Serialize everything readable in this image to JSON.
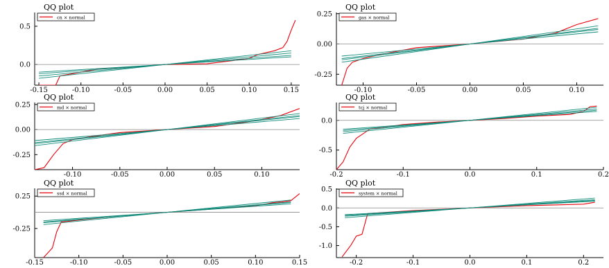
{
  "chart_data": [
    {
      "type": "line",
      "title": "QQ plot",
      "legend": {
        "label": "cn × normal",
        "position": "top-left"
      },
      "x_ticks": [
        -0.15,
        -0.1,
        -0.05,
        0.0,
        0.05,
        0.1,
        0.15
      ],
      "x_tick_labels": [
        "-0.15",
        "-0.10",
        "-0.05",
        "0.00",
        "0.05",
        "0.10",
        "0.15"
      ],
      "y_ticks": [
        0.0,
        0.5
      ],
      "y_tick_labels": [
        "0.0",
        "0.5"
      ],
      "xlim": [
        -0.155,
        0.16
      ],
      "ylim": [
        -0.27,
        0.68
      ],
      "series": [
        {
          "color": "#e8000b",
          "x": [
            -0.15,
            -0.14,
            -0.13,
            -0.125,
            -0.12,
            -0.11,
            -0.1,
            -0.08,
            -0.05,
            0.0,
            0.05,
            0.08,
            0.1,
            0.11,
            0.13,
            0.14,
            0.145,
            0.15,
            0.155
          ],
          "y": [
            -0.27,
            -0.27,
            -0.27,
            -0.15,
            -0.14,
            -0.12,
            -0.1,
            -0.06,
            -0.04,
            0.0,
            0.01,
            0.05,
            0.08,
            0.13,
            0.18,
            0.22,
            0.3,
            0.45,
            0.58
          ]
        },
        {
          "color": "#0f8a7a",
          "x": [
            -0.15,
            0.15
          ],
          "y": [
            -0.15,
            0.15
          ]
        },
        {
          "color": "#0f8a7a",
          "x": [
            -0.15,
            0.15
          ],
          "y": [
            -0.12,
            0.12
          ]
        },
        {
          "color": "#0f8a7a",
          "x": [
            -0.15,
            0.15
          ],
          "y": [
            -0.18,
            0.18
          ]
        },
        {
          "color": "#0f8a7a",
          "x": [
            -0.15,
            0.15
          ],
          "y": [
            -0.1,
            0.1
          ]
        }
      ],
      "reference_y": 0
    },
    {
      "type": "line",
      "title": "QQ plot",
      "legend": {
        "label": "gas × normal",
        "position": "top-left"
      },
      "x_ticks": [
        -0.1,
        -0.05,
        0.0,
        0.05,
        0.1
      ],
      "x_tick_labels": [
        "-0.10",
        "-0.05",
        "0.00",
        "0.05",
        "0.10"
      ],
      "y_ticks": [
        -0.25,
        0.0,
        0.25
      ],
      "y_tick_labels": [
        "-0.25",
        "0.00",
        "0.25"
      ],
      "xlim": [
        -0.125,
        0.125
      ],
      "ylim": [
        -0.34,
        0.26
      ],
      "series": [
        {
          "color": "#e8000b",
          "x": [
            -0.12,
            -0.115,
            -0.11,
            -0.1,
            -0.08,
            -0.05,
            0.0,
            0.05,
            0.08,
            0.1,
            0.12
          ],
          "y": [
            -0.34,
            -0.2,
            -0.15,
            -0.12,
            -0.08,
            -0.03,
            0.0,
            0.04,
            0.09,
            0.16,
            0.21
          ]
        },
        {
          "color": "#0f8a7a",
          "x": [
            -0.12,
            0.12
          ],
          "y": [
            -0.13,
            0.13
          ]
        },
        {
          "color": "#0f8a7a",
          "x": [
            -0.12,
            0.12
          ],
          "y": [
            -0.1,
            0.1
          ]
        },
        {
          "color": "#0f8a7a",
          "x": [
            -0.12,
            0.12
          ],
          "y": [
            -0.15,
            0.15
          ]
        },
        {
          "color": "#0f8a7a",
          "x": [
            -0.12,
            0.12
          ],
          "y": [
            -0.12,
            0.12
          ]
        }
      ],
      "reference_y": 0
    },
    {
      "type": "line",
      "title": "QQ plot",
      "legend": {
        "label": "md × normal",
        "position": "top-left"
      },
      "x_ticks": [
        -0.1,
        -0.05,
        0.0,
        0.05,
        0.1
      ],
      "x_tick_labels": [
        "-0.10",
        "-0.05",
        "0.00",
        "0.05",
        "0.10"
      ],
      "y_ticks": [
        -0.25,
        0.0,
        0.25
      ],
      "y_tick_labels": [
        "-0.25",
        "0.00",
        "0.25"
      ],
      "xlim": [
        -0.14,
        0.14
      ],
      "ylim": [
        -0.4,
        0.27
      ],
      "series": [
        {
          "color": "#e8000b",
          "x": [
            -0.14,
            -0.13,
            -0.12,
            -0.11,
            -0.1,
            -0.08,
            -0.05,
            0.0,
            0.05,
            0.08,
            0.1,
            0.12,
            0.14
          ],
          "y": [
            -0.4,
            -0.38,
            -0.25,
            -0.14,
            -0.1,
            -0.07,
            -0.03,
            0.0,
            0.03,
            0.07,
            0.1,
            0.14,
            0.21
          ]
        },
        {
          "color": "#0f8a7a",
          "x": [
            -0.14,
            0.14
          ],
          "y": [
            -0.14,
            0.14
          ]
        },
        {
          "color": "#0f8a7a",
          "x": [
            -0.14,
            0.14
          ],
          "y": [
            -0.11,
            0.11
          ]
        },
        {
          "color": "#0f8a7a",
          "x": [
            -0.14,
            0.14
          ],
          "y": [
            -0.16,
            0.16
          ]
        },
        {
          "color": "#0f8a7a",
          "x": [
            -0.14,
            0.14
          ],
          "y": [
            -0.13,
            0.13
          ]
        }
      ],
      "reference_y": 0
    },
    {
      "type": "line",
      "title": "QQ plot",
      "legend": {
        "label": "tcj × normal",
        "position": "top-left"
      },
      "x_ticks": [
        -0.2,
        -0.1,
        0.0,
        0.1,
        0.2
      ],
      "x_tick_labels": [
        "-0.2",
        "-0.1",
        "0.0",
        "0.1",
        "0.2"
      ],
      "y_ticks": [
        -0.5,
        0.0
      ],
      "y_tick_labels": [
        "-0.5",
        "0.0"
      ],
      "xlim": [
        -0.2,
        0.2
      ],
      "ylim": [
        -0.83,
        0.3
      ],
      "series": [
        {
          "color": "#e8000b",
          "x": [
            -0.2,
            -0.19,
            -0.18,
            -0.17,
            -0.15,
            -0.1,
            -0.05,
            0.0,
            0.05,
            0.1,
            0.15,
            0.17,
            0.18,
            0.19
          ],
          "y": [
            -0.83,
            -0.7,
            -0.45,
            -0.3,
            -0.15,
            -0.07,
            -0.03,
            0.0,
            0.03,
            0.07,
            0.1,
            0.15,
            0.23,
            0.24
          ]
        },
        {
          "color": "#0f8a7a",
          "x": [
            -0.19,
            0.19
          ],
          "y": [
            -0.19,
            0.19
          ]
        },
        {
          "color": "#0f8a7a",
          "x": [
            -0.19,
            0.19
          ],
          "y": [
            -0.15,
            0.15
          ]
        },
        {
          "color": "#0f8a7a",
          "x": [
            -0.19,
            0.19
          ],
          "y": [
            -0.22,
            0.22
          ]
        },
        {
          "color": "#0f8a7a",
          "x": [
            -0.19,
            0.19
          ],
          "y": [
            -0.17,
            0.17
          ]
        }
      ],
      "reference_y": 0
    },
    {
      "type": "line",
      "title": "QQ plot",
      "legend": {
        "label": "ssd × normal",
        "position": "top-left"
      },
      "x_ticks": [
        -0.15,
        -0.1,
        -0.05,
        0.0,
        0.05,
        0.1,
        0.15
      ],
      "x_tick_labels": [
        "-0.15",
        "-0.10",
        "-0.05",
        "0.00",
        "0.05",
        "0.10",
        "0.15"
      ],
      "y_ticks": [
        -0.25,
        0.25
      ],
      "y_tick_labels": [
        "-0.25",
        "0.25"
      ],
      "xlim": [
        -0.15,
        0.15
      ],
      "ylim": [
        -0.7,
        0.37
      ],
      "series": [
        {
          "color": "#e8000b",
          "x": [
            -0.14,
            -0.13,
            -0.125,
            -0.12,
            -0.1,
            -0.05,
            0.0,
            0.05,
            0.1,
            0.12,
            0.13,
            0.14,
            0.15
          ],
          "y": [
            -0.7,
            -0.55,
            -0.3,
            -0.15,
            -0.12,
            -0.05,
            0.0,
            0.05,
            0.1,
            0.15,
            0.16,
            0.18,
            0.29
          ]
        },
        {
          "color": "#0f8a7a",
          "x": [
            -0.14,
            0.14
          ],
          "y": [
            -0.16,
            0.16
          ]
        },
        {
          "color": "#0f8a7a",
          "x": [
            -0.14,
            0.14
          ],
          "y": [
            -0.13,
            0.13
          ]
        },
        {
          "color": "#0f8a7a",
          "x": [
            -0.14,
            0.14
          ],
          "y": [
            -0.19,
            0.19
          ]
        },
        {
          "color": "#0f8a7a",
          "x": [
            -0.14,
            0.14
          ],
          "y": [
            -0.15,
            0.15
          ]
        }
      ],
      "reference_y": 0
    },
    {
      "type": "line",
      "title": "QQ plot",
      "legend": {
        "label": "system × normal",
        "position": "top-left"
      },
      "x_ticks": [
        -0.2,
        -0.1,
        0.0,
        0.1,
        0.2
      ],
      "x_tick_labels": [
        "-0.2",
        "-0.1",
        "0.0",
        "0.1",
        "0.2"
      ],
      "y_ticks": [
        -1.0,
        -0.5,
        0.0,
        0.5
      ],
      "y_tick_labels": [
        "-1.0",
        "-0.5",
        "0.0",
        "0.5"
      ],
      "xlim": [
        -0.235,
        0.235
      ],
      "ylim": [
        -1.32,
        0.52
      ],
      "series": [
        {
          "color": "#e8000b",
          "x": [
            -0.225,
            -0.21,
            -0.2,
            -0.19,
            -0.18,
            -0.1,
            0.0,
            0.1,
            0.2,
            0.22
          ],
          "y": [
            -1.3,
            -1.0,
            -0.75,
            -0.7,
            -0.15,
            -0.07,
            0.0,
            0.06,
            0.1,
            0.15
          ]
        },
        {
          "color": "#0f8a7a",
          "x": [
            -0.22,
            0.22
          ],
          "y": [
            -0.22,
            0.22
          ]
        },
        {
          "color": "#0f8a7a",
          "x": [
            -0.22,
            0.22
          ],
          "y": [
            -0.18,
            0.18
          ]
        },
        {
          "color": "#0f8a7a",
          "x": [
            -0.22,
            0.22
          ],
          "y": [
            -0.26,
            0.26
          ]
        },
        {
          "color": "#0f8a7a",
          "x": [
            -0.22,
            0.22
          ],
          "y": [
            -0.2,
            0.2
          ]
        }
      ],
      "reference_y": 0
    }
  ]
}
